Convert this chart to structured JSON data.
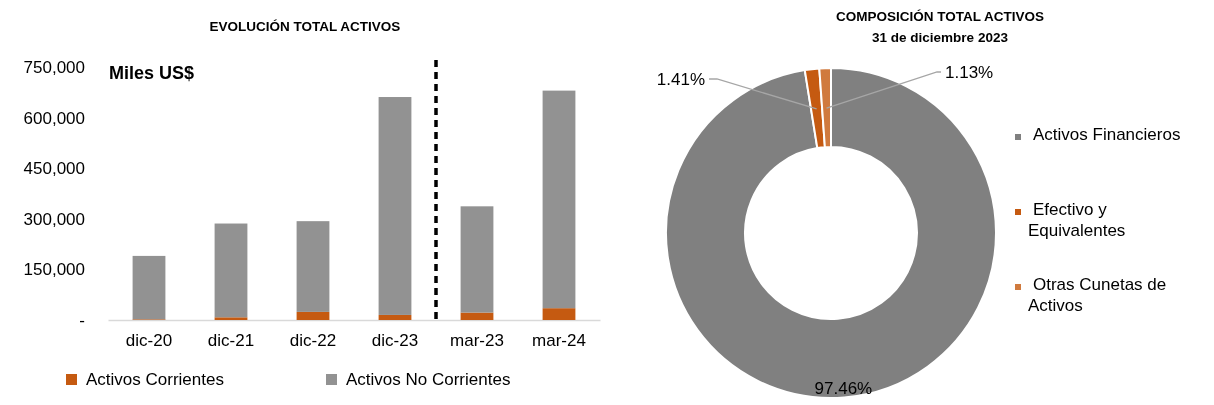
{
  "chart_data": [
    {
      "type": "bar",
      "title": "EVOLUCIÓN TOTAL ACTIVOS",
      "annotations": [
        "Miles US$"
      ],
      "categories": [
        "dic-20",
        "dic-21",
        "dic-22",
        "dic-23",
        "mar-23",
        "mar-24"
      ],
      "stacked": true,
      "series": [
        {
          "name": "Activos Corrientes",
          "color": "#c55a11",
          "values": [
            2000,
            8000,
            24000,
            15000,
            22000,
            35000
          ]
        },
        {
          "name": "Activos No Corrientes",
          "color": "#929292",
          "values": [
            188000,
            278000,
            269000,
            646000,
            315000,
            645000
          ]
        }
      ],
      "ylim": [
        0,
        750000
      ],
      "yticks": [
        {
          "value": 0,
          "label": "-"
        },
        {
          "value": 150000,
          "label": "150,000"
        },
        {
          "value": 300000,
          "label": "300,000"
        },
        {
          "value": 450000,
          "label": "450,000"
        },
        {
          "value": 600000,
          "label": "600,000"
        },
        {
          "value": 750000,
          "label": "750,000"
        }
      ],
      "grid": false,
      "legend": "bottom"
    },
    {
      "type": "donut",
      "title": "COMPOSICIÓN TOTAL ACTIVOS",
      "subtitle": "31 de diciembre 2023",
      "categories": [
        "Activos Financieros",
        "Efectivo y Equivalentes",
        "Otras Cunetas de Activos"
      ],
      "values": [
        97.46,
        1.41,
        1.13
      ],
      "colors": [
        "#808080",
        "#c55a11",
        "#d07a3e"
      ],
      "value_labels": [
        "97.46%",
        "1.41%",
        "1.13%"
      ],
      "legend": "right"
    }
  ]
}
